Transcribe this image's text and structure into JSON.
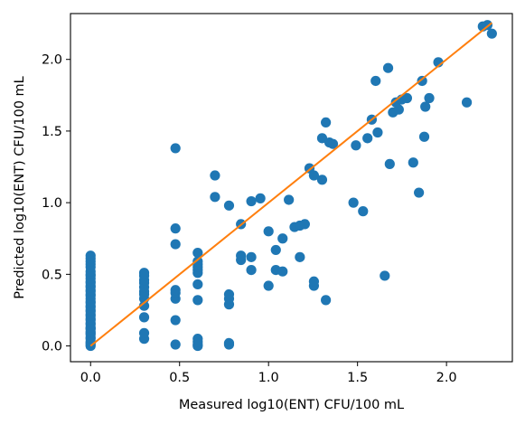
{
  "chart_data": {
    "type": "scatter",
    "title": "",
    "xlabel": "Measured log10(ENT) CFU/100 mL",
    "ylabel": "Predicted log10(ENT) CFU/100 mL",
    "xlim": [
      -0.113,
      2.37
    ],
    "ylim": [
      -0.11,
      2.32
    ],
    "xticks": [
      0.0,
      0.5,
      1.0,
      1.5,
      2.0
    ],
    "xtick_labels": [
      "0.0",
      "0.5",
      "1.0",
      "1.5",
      "2.0"
    ],
    "yticks": [
      0.0,
      0.5,
      1.0,
      1.5,
      2.0
    ],
    "ytick_labels": [
      "0.0",
      "0.5",
      "1.0",
      "1.5",
      "2.0"
    ],
    "grid": false,
    "colors": {
      "points": "#1f77b4",
      "line": "#ff7f0e",
      "axes": "#000000"
    },
    "series": [
      {
        "kind": "points",
        "x": [
          0,
          0,
          0,
          0,
          0,
          0,
          0,
          0,
          0,
          0,
          0,
          0,
          0,
          0,
          0,
          0,
          0,
          0,
          0,
          0,
          0,
          0,
          0,
          0,
          0,
          0,
          0,
          0,
          0,
          0,
          0,
          0,
          0,
          0,
          0,
          0,
          0,
          0,
          0,
          0,
          0,
          0,
          0.301,
          0.301,
          0.301,
          0.301,
          0.301,
          0.301,
          0.301,
          0.301,
          0.301,
          0.301,
          0.301,
          0.301,
          0.477,
          0.477,
          0.477,
          0.477,
          0.477,
          0.477,
          0.477,
          0.477,
          0.602,
          0.602,
          0.602,
          0.602,
          0.602,
          0.602,
          0.602,
          0.602,
          0.602,
          0.602,
          0.602,
          0.602,
          0.699,
          0.699,
          0.778,
          0.778,
          0.778,
          0.778,
          0.778,
          0.778,
          0.845,
          0.845,
          0.845,
          0.903,
          0.903,
          0.903,
          0.954,
          1.0,
          1.0,
          1.041,
          1.041,
          1.079,
          1.079,
          1.114,
          1.146,
          1.176,
          1.176,
          1.204,
          1.23,
          1.255,
          1.255,
          1.255,
          1.301,
          1.301,
          1.322,
          1.322,
          1.342,
          1.362,
          1.477,
          1.491,
          1.531,
          1.556,
          1.58,
          1.602,
          1.613,
          1.653,
          1.672,
          1.681,
          1.699,
          1.716,
          1.732,
          1.748,
          1.778,
          1.813,
          1.845,
          1.863,
          1.875,
          1.881,
          1.903,
          1.954,
          2.114,
          2.204,
          2.23,
          2.255
        ],
        "y": [
          0.0,
          0.01,
          0.02,
          0.03,
          0.05,
          0.06,
          0.08,
          0.09,
          0.1,
          0.12,
          0.13,
          0.15,
          0.16,
          0.18,
          0.19,
          0.21,
          0.22,
          0.24,
          0.25,
          0.27,
          0.28,
          0.3,
          0.31,
          0.33,
          0.35,
          0.36,
          0.38,
          0.39,
          0.41,
          0.42,
          0.44,
          0.45,
          0.47,
          0.49,
          0.5,
          0.52,
          0.55,
          0.57,
          0.59,
          0.61,
          0.63,
          0.12,
          0.05,
          0.09,
          0.2,
          0.28,
          0.33,
          0.36,
          0.38,
          0.41,
          0.44,
          0.46,
          0.49,
          0.51,
          0.01,
          0.18,
          0.33,
          0.37,
          0.39,
          0.71,
          0.82,
          1.38,
          0.0,
          0.01,
          0.03,
          0.05,
          0.32,
          0.43,
          0.51,
          0.53,
          0.55,
          0.57,
          0.59,
          0.65,
          1.04,
          1.19,
          0.01,
          0.02,
          0.29,
          0.33,
          0.36,
          0.98,
          0.6,
          0.63,
          0.85,
          0.53,
          0.62,
          1.01,
          1.03,
          0.42,
          0.8,
          0.53,
          0.67,
          0.52,
          0.75,
          1.02,
          0.83,
          0.62,
          0.84,
          0.85,
          1.24,
          0.42,
          0.45,
          1.19,
          1.16,
          1.45,
          1.56,
          0.32,
          1.42,
          1.41,
          1.0,
          1.4,
          0.94,
          1.45,
          1.58,
          1.85,
          1.49,
          0.49,
          1.94,
          1.27,
          1.63,
          1.7,
          1.65,
          1.72,
          1.73,
          1.28,
          1.07,
          1.85,
          1.46,
          1.67,
          1.73,
          1.98,
          1.7,
          2.23,
          2.24,
          2.18
        ]
      },
      {
        "kind": "line",
        "x": [
          0.0,
          2.255
        ],
        "y": [
          0.0,
          2.255
        ]
      }
    ]
  }
}
